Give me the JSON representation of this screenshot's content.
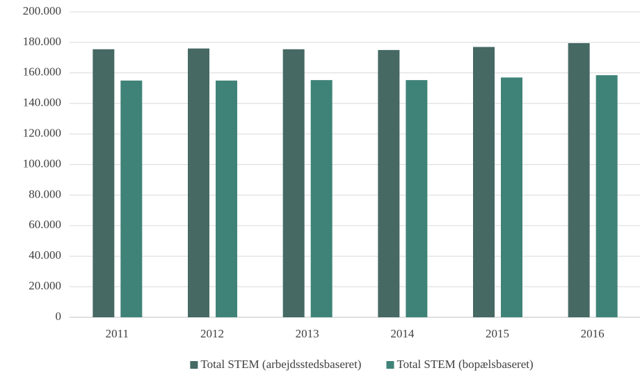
{
  "chart_data": {
    "type": "bar",
    "categories": [
      "2011",
      "2012",
      "2013",
      "2014",
      "2015",
      "2016"
    ],
    "series": [
      {
        "name": "Total STEM (arbejdsstedsbaseret)",
        "color": "#466964",
        "values": [
          175500,
          176000,
          175500,
          175000,
          177000,
          179500
        ]
      },
      {
        "name": "Total STEM (bopælsbaseret)",
        "color": "#3f8378",
        "values": [
          155000,
          155000,
          155300,
          155300,
          157000,
          158500
        ]
      }
    ],
    "ylim": [
      0,
      200000
    ],
    "yticks": [
      0,
      {
        "value": 20000,
        "label": "20.000"
      },
      {
        "value": 40000,
        "label": "40.000"
      },
      {
        "value": 60000,
        "label": "60.000"
      },
      {
        "value": 80000,
        "label": "80.000"
      },
      {
        "value": 100000,
        "label": "100.000"
      },
      {
        "value": 120000,
        "label": "120.000"
      },
      {
        "value": 140000,
        "label": "140.000"
      },
      {
        "value": 160000,
        "label": "160.000"
      },
      {
        "value": 180000,
        "label": "180.000"
      },
      {
        "value": 200000,
        "label": "200.000"
      }
    ],
    "grid": true,
    "legend": "bottom"
  }
}
